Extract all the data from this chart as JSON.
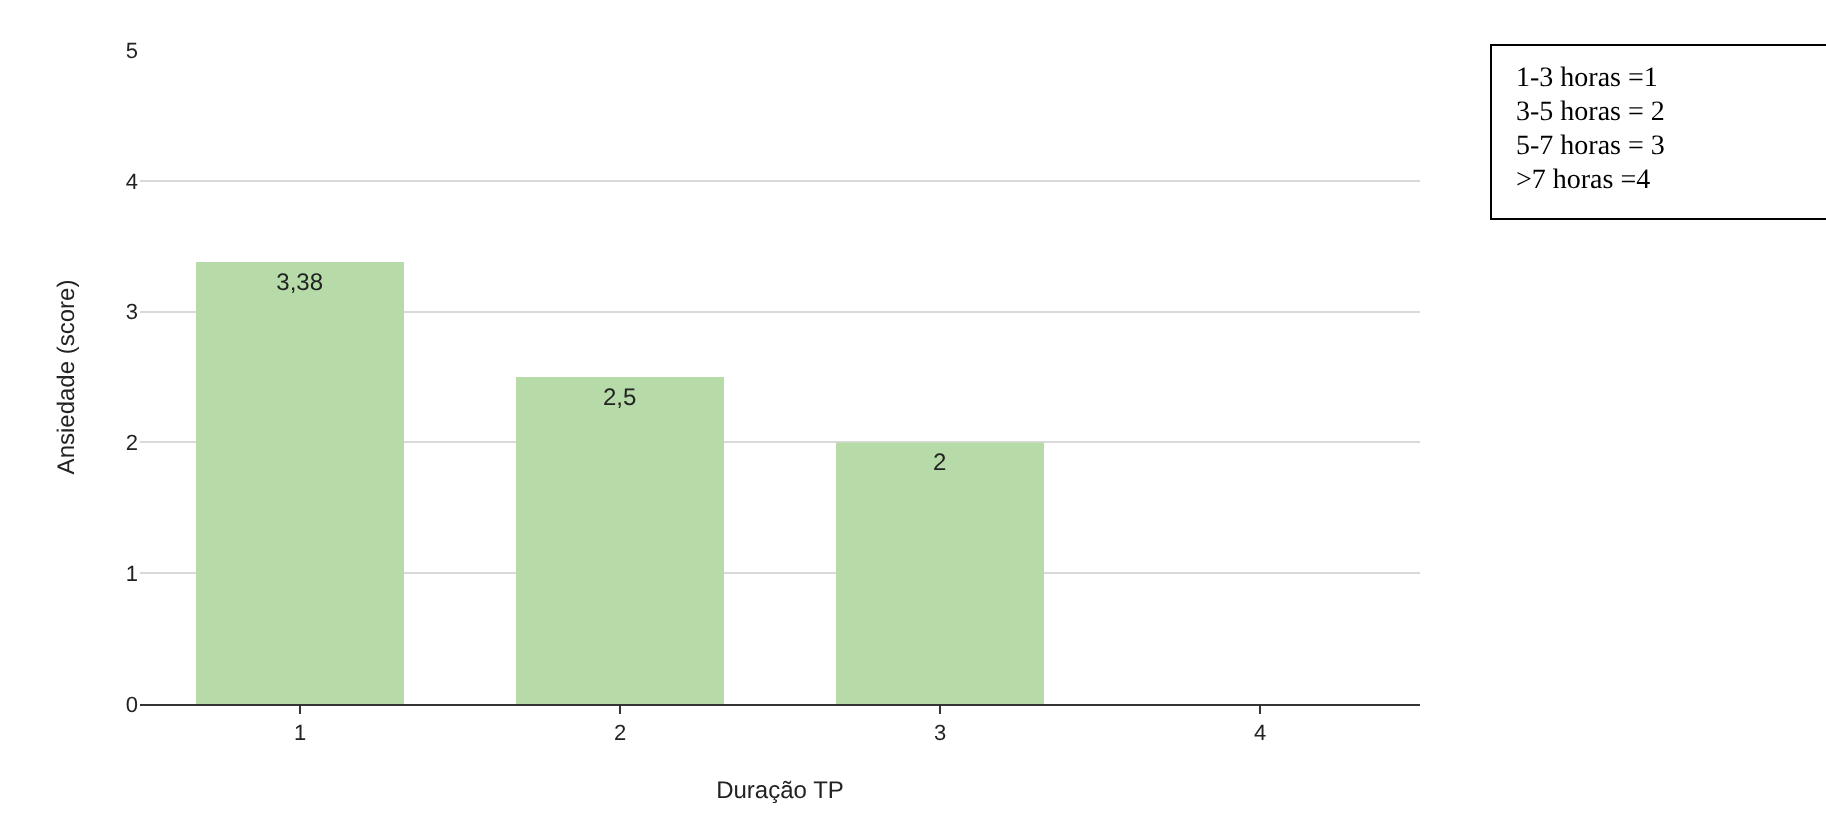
{
  "chart_data": {
    "type": "bar",
    "xlabel": "Duração TP",
    "ylabel": "Ansiedade (score)",
    "categories": [
      "1",
      "2",
      "3",
      "4"
    ],
    "values": [
      3.38,
      2.5,
      2,
      null
    ],
    "value_labels": [
      "3,38",
      "2,5",
      "2",
      null
    ],
    "color": "#b7dba8",
    "ylim": [
      0,
      5
    ],
    "yticks": [
      0,
      1,
      2,
      3,
      4,
      5
    ],
    "grid": "y",
    "annotations": [
      "1-3 horas =1",
      "3-5 horas = 2",
      "5-7 horas = 3",
      ">7 horas =4"
    ]
  }
}
